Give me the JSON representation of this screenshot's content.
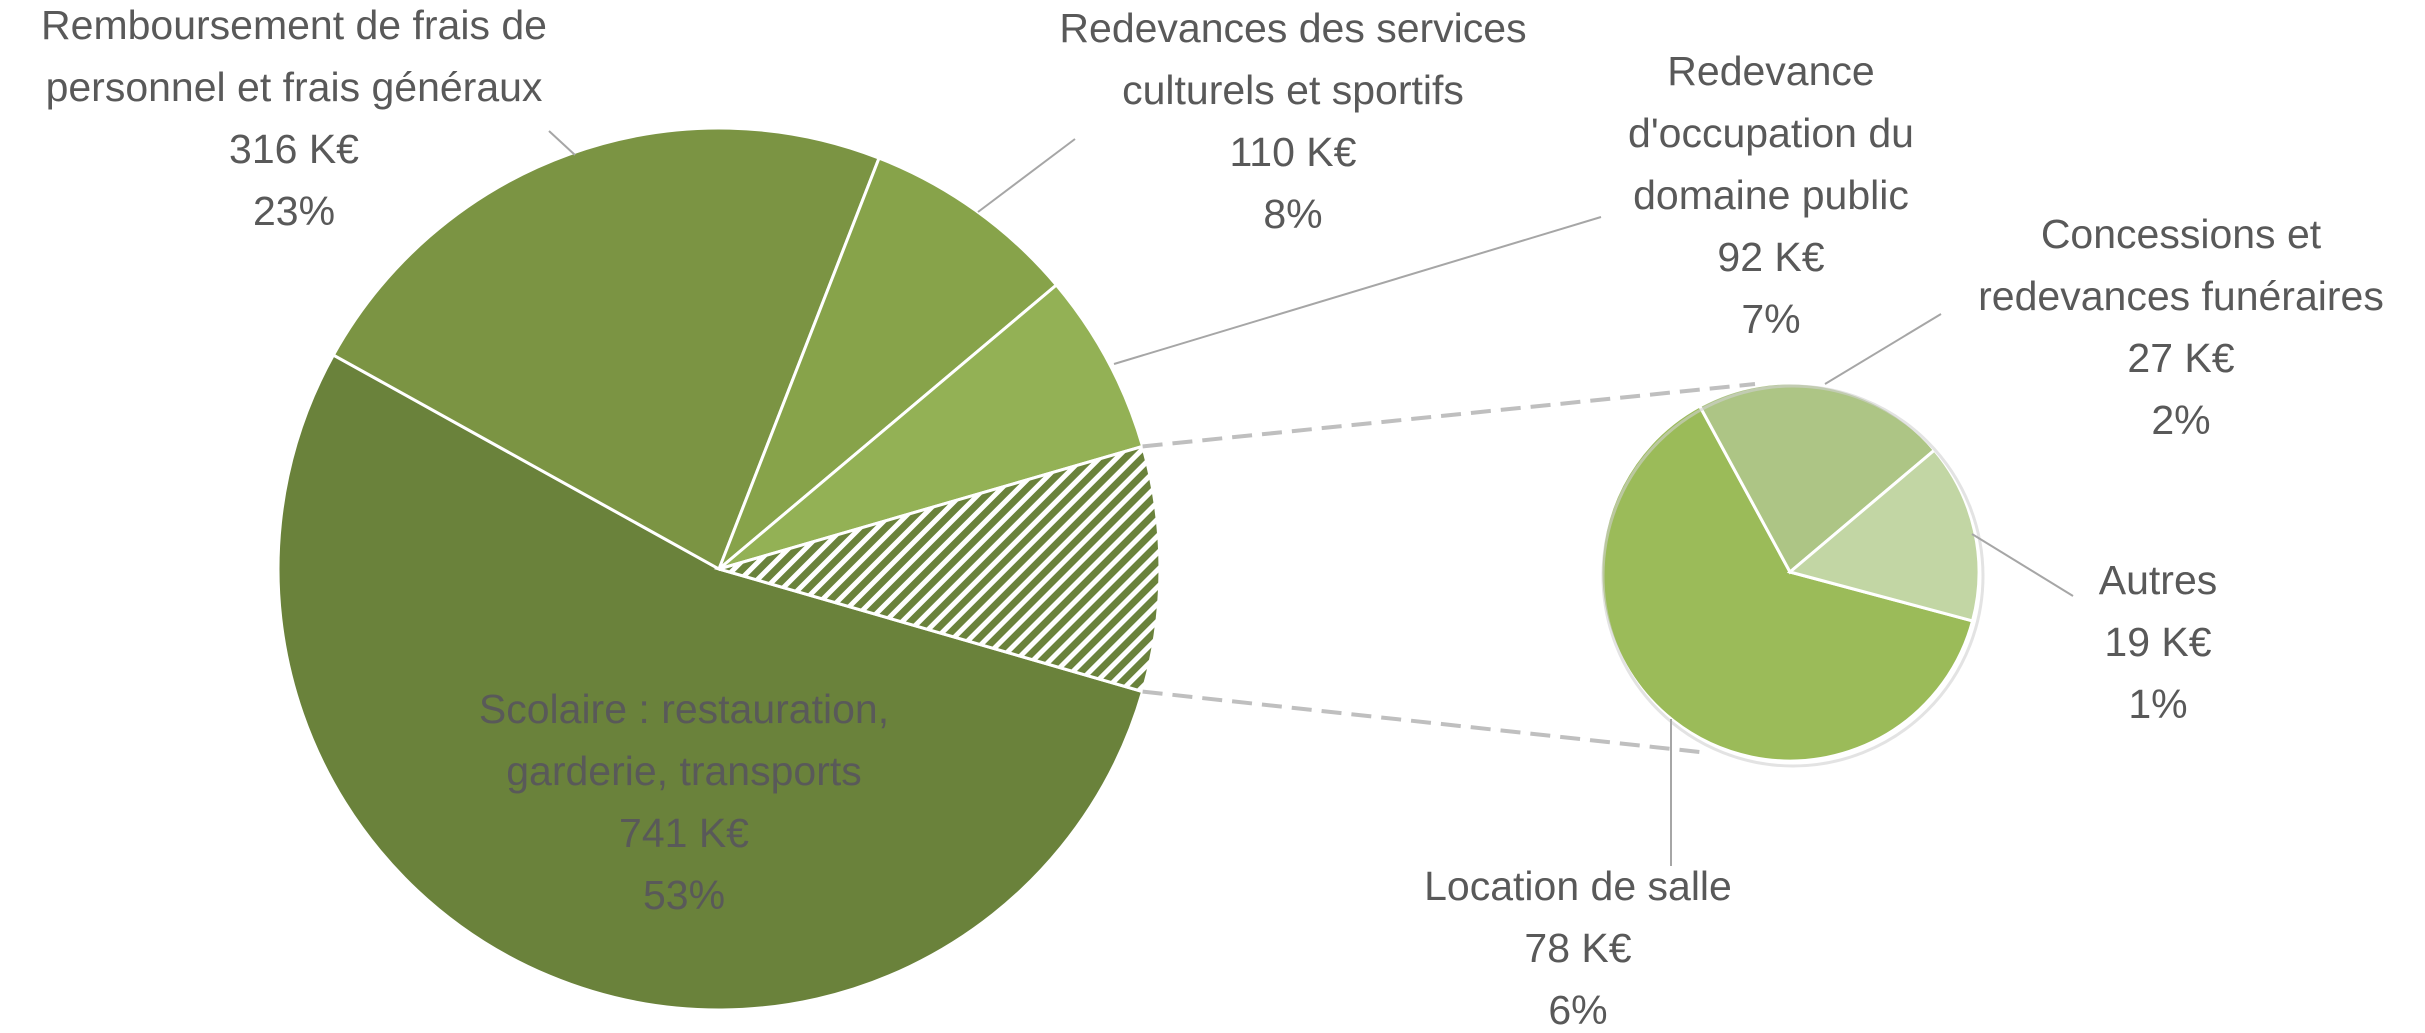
{
  "chart_data": {
    "type": "pie-of-pie",
    "categories": [
      "Scolaire : restauration,\ngarderie, transports",
      "Remboursement de frais de\npersonnel et frais généraux",
      "Redevances des services\nculturels et sportifs",
      "Redevance\nd'occupation du\ndomaine public"
    ],
    "values": [
      741,
      316,
      110,
      92
    ],
    "value_labels": [
      "741 K€",
      "316 K€",
      "110 K€",
      "92 K€"
    ],
    "percents": [
      53,
      23,
      8,
      7
    ],
    "percent_labels": [
      "53%",
      "23%",
      "8%",
      "7%"
    ],
    "colors": [
      "#6a823b",
      "#7b9443",
      "#87a34a",
      "#93b155"
    ],
    "other_color": "#6a823b",
    "secondary": {
      "categories": [
        "Location de salle",
        "Concessions et\nredevances funéraires",
        "Autres"
      ],
      "values": [
        78,
        27,
        19
      ],
      "value_labels": [
        "78 K€",
        "27 K€",
        "19 K€"
      ],
      "percents": [
        6,
        2,
        1
      ],
      "percent_labels": [
        "6%",
        "2%",
        "1%"
      ],
      "colors": [
        "#9bbb59",
        "#adc585",
        "#c2d6a4"
      ]
    }
  }
}
